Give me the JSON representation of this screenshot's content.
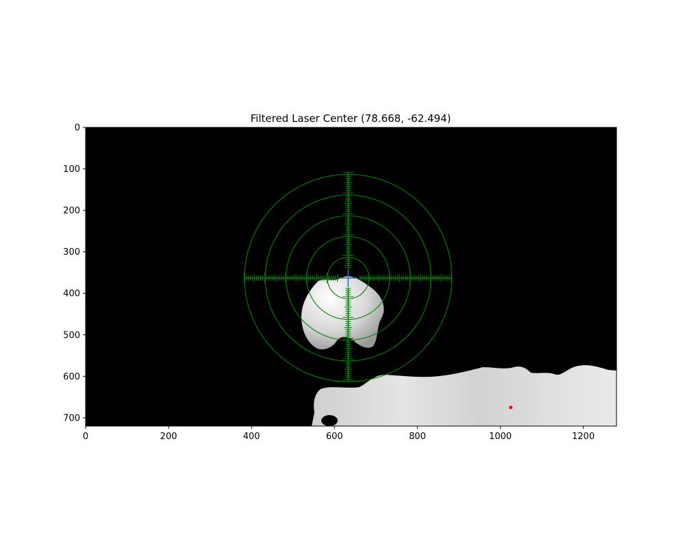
{
  "chart_data": {
    "type": "image",
    "title": "Filtered Laser Center (78.668, -62.494)",
    "xlabel": "",
    "ylabel": "",
    "xlim": [
      0,
      1280
    ],
    "ylim": [
      720,
      0
    ],
    "x_ticks": [
      0,
      200,
      400,
      600,
      800,
      1000,
      1200
    ],
    "y_ticks": [
      0,
      100,
      200,
      300,
      400,
      500,
      600,
      700
    ],
    "background_color": "#000000",
    "reticle": {
      "center": [
        633,
        363
      ],
      "ring_radii": [
        50,
        100,
        150,
        200,
        250
      ],
      "color": "#008000",
      "vertical_span": [
        108,
        610
      ],
      "horizontal_span": [
        382,
        884
      ],
      "inner_gap": 25,
      "tick_spacing": 5
    },
    "center_marker": {
      "x": 633,
      "y": 363,
      "color": "#1f77b4",
      "half_size": 22
    },
    "red_point": {
      "x": 1025,
      "y": 675,
      "color": "#ff0000"
    },
    "blobs": [
      {
        "name": "upper-blob",
        "color": "#e8e8e8"
      },
      {
        "name": "lower-blob",
        "color": "#d9d9d9"
      }
    ]
  }
}
